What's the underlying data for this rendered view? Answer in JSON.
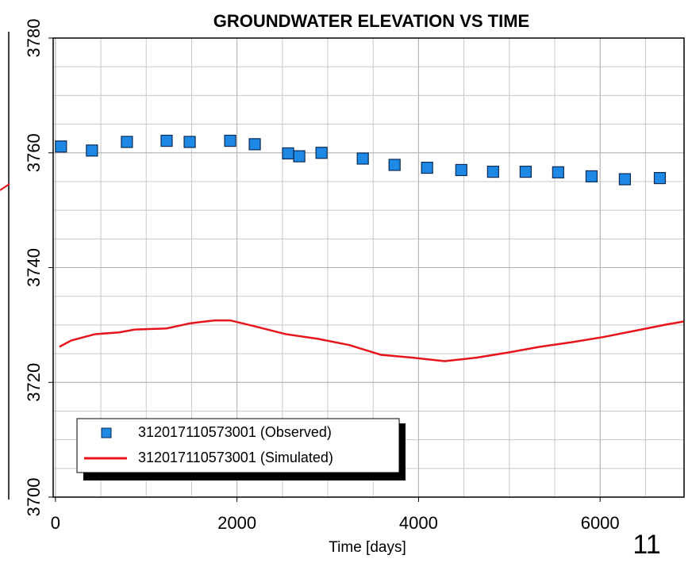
{
  "chart_data": {
    "type": "line",
    "title": "GROUNDWATER ELEVATION VS TIME",
    "x_label": "Time [days]",
    "page_number": "11",
    "xlim": [
      -25,
      6925
    ],
    "xticks": [
      0,
      2000,
      4000,
      6000
    ],
    "ylim": [
      3700,
      3780
    ],
    "yticks": [
      3700,
      3720,
      3740,
      3760,
      3780
    ],
    "grid": true,
    "series": [
      {
        "name": "312017110573001 (Observed)",
        "kind": "scatter",
        "color": "#1e88e5",
        "x": [
          61,
          402,
          787,
          1225,
          1479,
          1925,
          2196,
          2563,
          2686,
          2931,
          3386,
          3736,
          4094,
          4471,
          4821,
          5180,
          5538,
          5906,
          6273,
          6658
        ],
        "values": [
          3761.1,
          3760.4,
          3761.9,
          3762.1,
          3761.9,
          3762.1,
          3761.5,
          3759.9,
          3759.4,
          3760.0,
          3759.0,
          3757.9,
          3757.4,
          3757.0,
          3756.7,
          3756.7,
          3756.6,
          3755.9,
          3755.4,
          3755.6
        ]
      },
      {
        "name": "312017110573001 (Simulated)",
        "kind": "line",
        "color": "#e8141c",
        "x": [
          44,
          175,
          437,
          700,
          875,
          1225,
          1487,
          1750,
          1925,
          2187,
          2537,
          2887,
          3237,
          3587,
          3937,
          4287,
          4637,
          4987,
          5337,
          5687,
          6037,
          6387,
          6737,
          6920
        ],
        "values": [
          3726.2,
          3727.3,
          3728.4,
          3728.7,
          3729.2,
          3729.4,
          3730.3,
          3730.8,
          3730.8,
          3729.8,
          3728.4,
          3727.6,
          3726.5,
          3724.8,
          3724.3,
          3723.7,
          3724.3,
          3725.2,
          3726.2,
          3727.0,
          3727.9,
          3729.0,
          3730.1,
          3730.6
        ]
      }
    ]
  }
}
